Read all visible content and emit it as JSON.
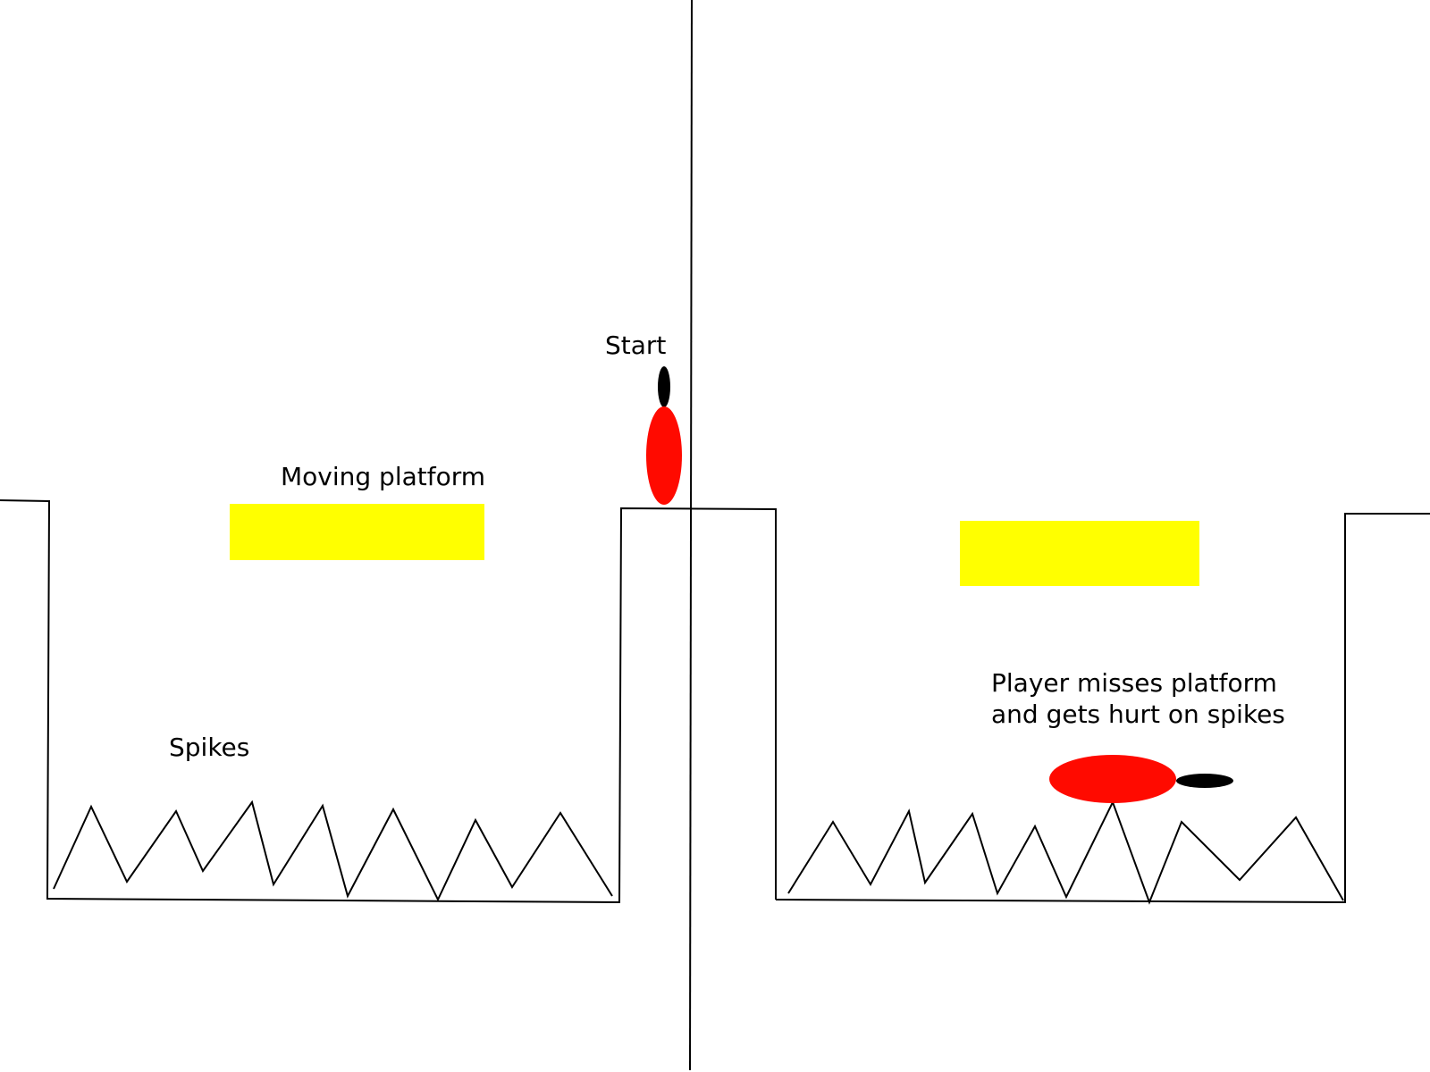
{
  "labels": {
    "start": "Start",
    "moving_platform": "Moving platform",
    "spikes": "Spikes",
    "caption_line1": "Player misses platform",
    "caption_line2": "and gets hurt on spikes"
  },
  "colors": {
    "platform": "#ffff00",
    "player_body": "#ff0a00",
    "player_head": "#000000",
    "line": "#000000",
    "background": "#ffffff"
  }
}
